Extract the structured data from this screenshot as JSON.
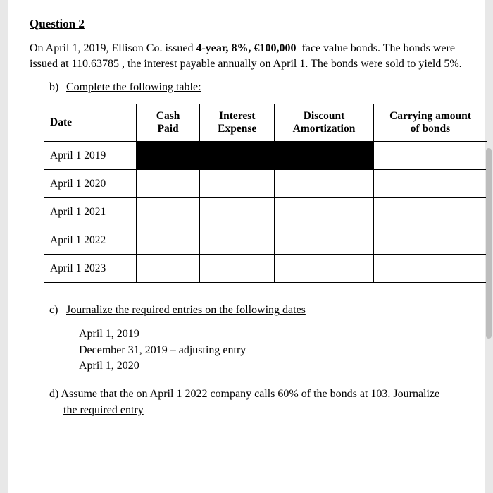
{
  "question": {
    "title": "Question 2",
    "intro_html": "On April 1, 2019, Ellison Co. issued <b>4-year, 8%, &euro;100,000</b> &nbsp;face value bonds. The bonds were issued at 110.63785 , the interest payable annually on April 1. The bonds were sold to yield 5%."
  },
  "part_b": {
    "marker": "b)",
    "text": "Complete the following table:"
  },
  "table": {
    "headers": {
      "date": "Date",
      "cash_line1": "Cash",
      "cash_line2": "Paid",
      "interest_line1": "Interest",
      "interest_line2": "Expense",
      "discount_line1": "Discount",
      "discount_line2": "Amortization",
      "carrying_line1": "Carrying amount",
      "carrying_line2": "of bonds"
    },
    "rows": [
      {
        "date": "April 1 2019",
        "cash": "",
        "interest": "",
        "discount": "",
        "carrying": "",
        "blackout": true
      },
      {
        "date": "April 1 2020",
        "cash": "",
        "interest": "",
        "discount": "",
        "carrying": "",
        "blackout": false
      },
      {
        "date": "April 1 2021",
        "cash": "",
        "interest": "",
        "discount": "",
        "carrying": "",
        "blackout": false
      },
      {
        "date": "April 1 2022",
        "cash": "",
        "interest": "",
        "discount": "",
        "carrying": "",
        "blackout": false
      },
      {
        "date": "April 1 2023",
        "cash": "",
        "interest": "",
        "discount": "",
        "carrying": "",
        "blackout": false
      }
    ],
    "colors": {
      "border": "#000000",
      "blackout": "#000000",
      "bg": "#ffffff"
    }
  },
  "part_c": {
    "marker": "c)",
    "text": "Journalize the required entries on the following dates",
    "dates": [
      "April 1, 2019",
      "December 31, 2019 – adjusting entry",
      "April 1, 2020"
    ]
  },
  "part_d": {
    "marker": "d)",
    "pre": "Assume that the on April 1 2022 company calls 60% of the bonds at 103. ",
    "u1": "Journalize",
    "u2": "the required entry"
  }
}
